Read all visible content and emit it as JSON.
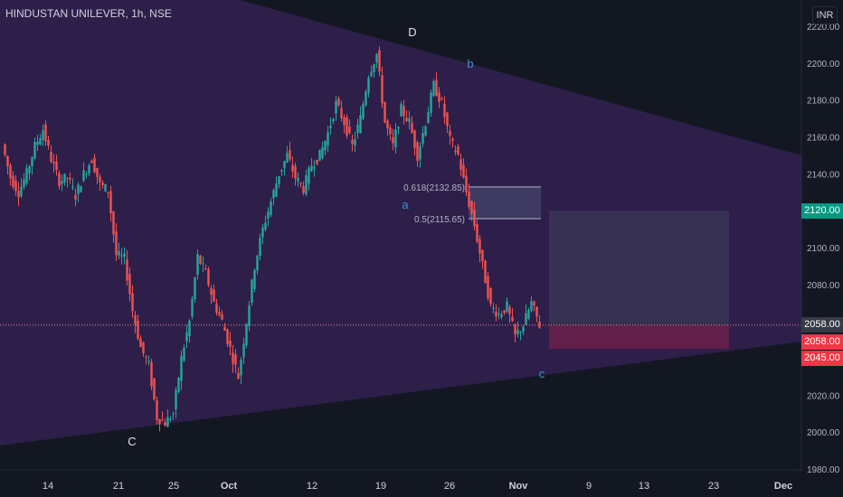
{
  "header": {
    "symbol_title": "HINDUSTAN UNILEVER, 1h, NSE",
    "currency": "INR"
  },
  "price_labels": {
    "target": "2120.00",
    "last_a": "2058.00",
    "last_b": "2058.00",
    "stop": "2045.00"
  },
  "colors": {
    "background": "#131722",
    "triangle_fill": "#2d1f4a",
    "up": "#26a69a",
    "down": "#ef5350",
    "target_green": "#089981",
    "stop_red": "#f23645",
    "wave_labels_dark": "#e0e3eb",
    "wave_labels_light": "#3f91c9"
  },
  "chart_data": {
    "type": "candlestick",
    "title": "HINDUSTAN UNILEVER, 1h, NSE",
    "xlabel": "",
    "ylabel": "",
    "ylim": [
      1980,
      2220
    ],
    "y_ticks": [
      "2220.00",
      "2200.00",
      "2180.00",
      "2160.00",
      "2140.00",
      "2120.00",
      "2100.00",
      "2080.00",
      "2060.00",
      "2040.00",
      "2020.00",
      "2000.00",
      "1980.00"
    ],
    "x_ticks": [
      "14",
      "21",
      "25",
      "Oct",
      "12",
      "19",
      "26",
      "Nov",
      "9",
      "13",
      "23",
      "Dec"
    ],
    "price_path": [
      [
        0,
        2156
      ],
      [
        1,
        2138
      ],
      [
        2,
        2130
      ],
      [
        3,
        2140
      ],
      [
        4,
        2155
      ],
      [
        5,
        2164
      ],
      [
        6,
        2148
      ],
      [
        7,
        2136
      ],
      [
        8,
        2138
      ],
      [
        9,
        2128
      ],
      [
        10,
        2140
      ],
      [
        11,
        2148
      ],
      [
        12,
        2134
      ],
      [
        13,
        2131
      ],
      [
        14,
        2096
      ],
      [
        15,
        2094
      ],
      [
        16,
        2066
      ],
      [
        17,
        2046
      ],
      [
        18,
        2036
      ],
      [
        19,
        2008
      ],
      [
        20,
        2005
      ],
      [
        21,
        2010
      ],
      [
        22,
        2040
      ],
      [
        23,
        2060
      ],
      [
        24,
        2095
      ],
      [
        25,
        2086
      ],
      [
        26,
        2070
      ],
      [
        27,
        2060
      ],
      [
        28,
        2045
      ],
      [
        29,
        2030
      ],
      [
        30,
        2060
      ],
      [
        31,
        2090
      ],
      [
        32,
        2110
      ],
      [
        33,
        2125
      ],
      [
        34,
        2140
      ],
      [
        35,
        2150
      ],
      [
        36,
        2138
      ],
      [
        37,
        2132
      ],
      [
        38,
        2145
      ],
      [
        39,
        2150
      ],
      [
        40,
        2162
      ],
      [
        41,
        2178
      ],
      [
        42,
        2168
      ],
      [
        43,
        2155
      ],
      [
        44,
        2170
      ],
      [
        45,
        2194
      ],
      [
        46,
        2205
      ],
      [
        47,
        2168
      ],
      [
        48,
        2155
      ],
      [
        49,
        2175
      ],
      [
        50,
        2168
      ],
      [
        51,
        2150
      ],
      [
        52,
        2168
      ],
      [
        53,
        2188
      ],
      [
        54,
        2178
      ],
      [
        55,
        2158
      ],
      [
        56,
        2150
      ],
      [
        57,
        2130
      ],
      [
        58,
        2112
      ],
      [
        59,
        2090
      ],
      [
        60,
        2068
      ],
      [
        61,
        2064
      ],
      [
        62,
        2068
      ],
      [
        63,
        2052
      ],
      [
        64,
        2058
      ],
      [
        65,
        2070
      ],
      [
        66,
        2058
      ]
    ],
    "annotations": [
      {
        "label": "D",
        "price": 2213
      },
      {
        "label": "b",
        "price": 2190
      },
      {
        "label": "a",
        "price": 2123
      },
      {
        "label": "C",
        "price": 1999
      },
      {
        "label": "c",
        "price": 2034
      }
    ],
    "fibonacci": [
      {
        "label": "0.618(2132.85)",
        "level": 2132.85
      },
      {
        "label": "0.5(2115.65)",
        "level": 2115.65
      }
    ],
    "position": {
      "entry": 2058.0,
      "target": 2120.0,
      "stop": 2045.0
    },
    "last_price": 2058.0,
    "grid": false
  }
}
